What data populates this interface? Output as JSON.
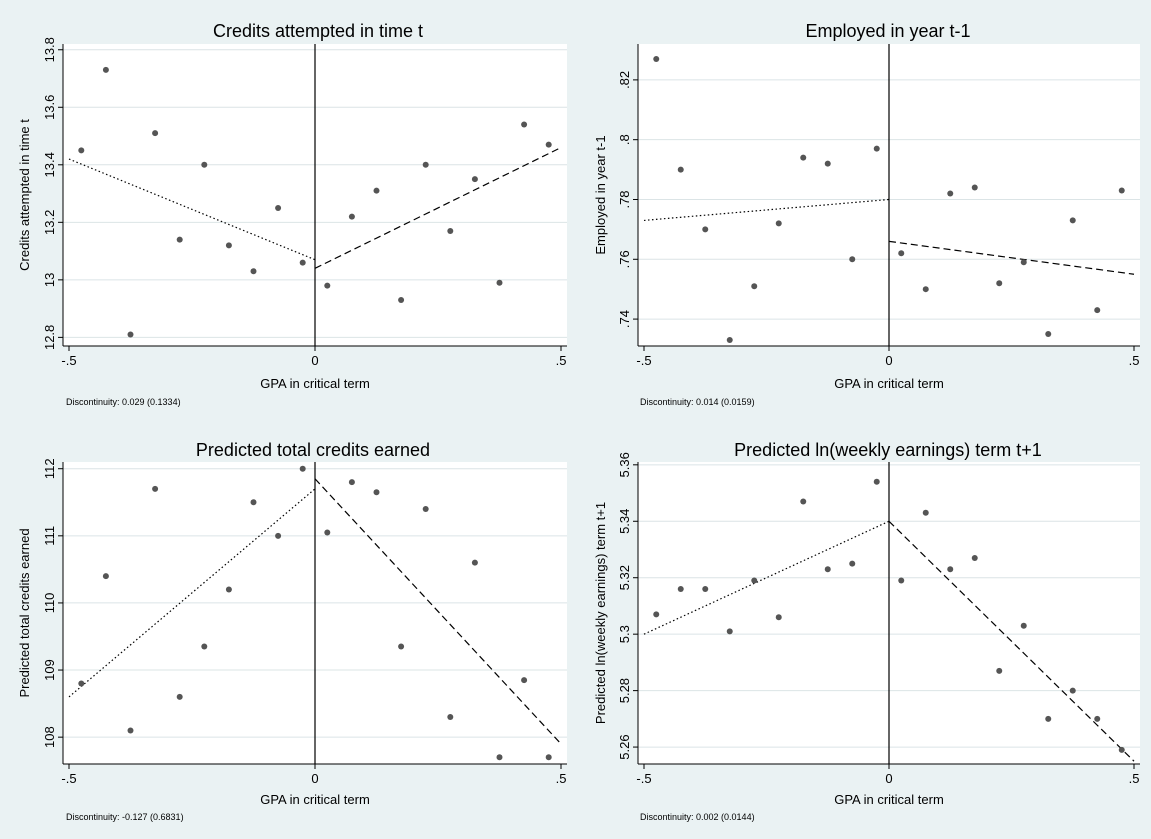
{
  "chart_data": [
    {
      "type": "scatter",
      "title": "Credits attempted in time t",
      "xlabel": "GPA in critical term",
      "ylabel": "Credits attempted in time t",
      "xlim": [
        -0.5,
        0.5
      ],
      "ylim": [
        12.77,
        13.82
      ],
      "x_ticks": [
        -0.5,
        0,
        0.5
      ],
      "x_tick_labels": [
        "-.5",
        "0",
        ".5"
      ],
      "y_ticks": [
        12.8,
        13,
        13.2,
        13.4,
        13.6,
        13.8
      ],
      "y_tick_labels": [
        "12.8",
        "13",
        "13.2",
        "13.4",
        "13.6",
        "13.8"
      ],
      "grid": true,
      "cutoff": 0,
      "note": "Discontinuity: 0.029 (0.1334)",
      "points": [
        [
          -0.475,
          13.45
        ],
        [
          -0.425,
          13.73
        ],
        [
          -0.375,
          12.81
        ],
        [
          -0.325,
          13.51
        ],
        [
          -0.275,
          13.14
        ],
        [
          -0.225,
          13.4
        ],
        [
          -0.175,
          13.12
        ],
        [
          -0.125,
          13.03
        ],
        [
          -0.075,
          13.25
        ],
        [
          -0.025,
          13.06
        ],
        [
          0.025,
          12.98
        ],
        [
          0.075,
          13.22
        ],
        [
          0.125,
          13.31
        ],
        [
          0.175,
          12.93
        ],
        [
          0.225,
          13.4
        ],
        [
          0.275,
          13.17
        ],
        [
          0.325,
          13.35
        ],
        [
          0.375,
          12.99
        ],
        [
          0.425,
          13.54
        ],
        [
          0.475,
          13.47
        ]
      ],
      "left_fit": [
        [
          -0.5,
          13.42
        ],
        [
          0,
          13.07
        ]
      ],
      "right_fit": [
        [
          0,
          13.04
        ],
        [
          0.5,
          13.46
        ]
      ]
    },
    {
      "type": "scatter",
      "title": "Employed in year t-1",
      "xlabel": "GPA in critical term",
      "ylabel": "Employed in year t-1",
      "xlim": [
        -0.5,
        0.5
      ],
      "ylim": [
        0.731,
        0.832
      ],
      "x_ticks": [
        -0.5,
        0,
        0.5
      ],
      "x_tick_labels": [
        "-.5",
        "0",
        ".5"
      ],
      "y_ticks": [
        0.74,
        0.76,
        0.78,
        0.8,
        0.82
      ],
      "y_tick_labels": [
        ".74",
        ".76",
        ".78",
        ".8",
        ".82"
      ],
      "grid": true,
      "cutoff": 0,
      "note": "Discontinuity: 0.014 (0.0159)",
      "points": [
        [
          -0.475,
          0.827
        ],
        [
          -0.425,
          0.79
        ],
        [
          -0.375,
          0.77
        ],
        [
          -0.325,
          0.733
        ],
        [
          -0.275,
          0.751
        ],
        [
          -0.225,
          0.772
        ],
        [
          -0.175,
          0.794
        ],
        [
          -0.125,
          0.792
        ],
        [
          -0.075,
          0.76
        ],
        [
          -0.025,
          0.797
        ],
        [
          0.025,
          0.762
        ],
        [
          0.075,
          0.75
        ],
        [
          0.125,
          0.782
        ],
        [
          0.175,
          0.784
        ],
        [
          0.225,
          0.752
        ],
        [
          0.275,
          0.759
        ],
        [
          0.325,
          0.735
        ],
        [
          0.375,
          0.773
        ],
        [
          0.425,
          0.743
        ],
        [
          0.475,
          0.783
        ]
      ],
      "left_fit": [
        [
          -0.5,
          0.773
        ],
        [
          0,
          0.78
        ]
      ],
      "right_fit": [
        [
          0,
          0.766
        ],
        [
          0.5,
          0.755
        ]
      ]
    },
    {
      "type": "scatter",
      "title": "Predicted total credits earned",
      "xlabel": "GPA in critical term",
      "ylabel": "Predicted total credits earned",
      "xlim": [
        -0.5,
        0.5
      ],
      "ylim": [
        107.6,
        112.1
      ],
      "x_ticks": [
        -0.5,
        0,
        0.5
      ],
      "x_tick_labels": [
        "-.5",
        "0",
        ".5"
      ],
      "y_ticks": [
        108,
        109,
        110,
        111,
        112
      ],
      "y_tick_labels": [
        "108",
        "109",
        "110",
        "111",
        "112"
      ],
      "grid": true,
      "cutoff": 0,
      "note": "Discontinuity: -0.127 (0.6831)",
      "points": [
        [
          -0.475,
          108.8
        ],
        [
          -0.425,
          110.4
        ],
        [
          -0.375,
          108.1
        ],
        [
          -0.325,
          111.7
        ],
        [
          -0.275,
          108.6
        ],
        [
          -0.225,
          109.35
        ],
        [
          -0.175,
          110.2
        ],
        [
          -0.125,
          111.5
        ],
        [
          -0.075,
          111.0
        ],
        [
          -0.025,
          112.0
        ],
        [
          0.025,
          111.05
        ],
        [
          0.075,
          111.8
        ],
        [
          0.125,
          111.65
        ],
        [
          0.175,
          109.35
        ],
        [
          0.225,
          111.4
        ],
        [
          0.275,
          108.3
        ],
        [
          0.325,
          110.6
        ],
        [
          0.375,
          107.7
        ],
        [
          0.425,
          108.85
        ],
        [
          0.475,
          107.7
        ]
      ],
      "left_fit": [
        [
          -0.5,
          108.6
        ],
        [
          0,
          111.7
        ]
      ],
      "right_fit": [
        [
          0,
          111.85
        ],
        [
          0.5,
          107.9
        ]
      ]
    },
    {
      "type": "scatter",
      "title": "Predicted ln(weekly earnings) term t+1",
      "xlabel": "GPA in critical term",
      "ylabel": "Predicted ln(weekly earnings) term t+1",
      "xlim": [
        -0.5,
        0.5
      ],
      "ylim": [
        5.254,
        5.361
      ],
      "x_ticks": [
        -0.5,
        0,
        0.5
      ],
      "x_tick_labels": [
        "-.5",
        "0",
        ".5"
      ],
      "y_ticks": [
        5.26,
        5.28,
        5.3,
        5.32,
        5.34,
        5.36
      ],
      "y_tick_labels": [
        "5.26",
        "5.28",
        "5.3",
        "5.32",
        "5.34",
        "5.36"
      ],
      "grid": true,
      "cutoff": 0,
      "note": "Discontinuity: 0.002 (0.0144)",
      "points": [
        [
          -0.475,
          5.307
        ],
        [
          -0.425,
          5.316
        ],
        [
          -0.375,
          5.316
        ],
        [
          -0.325,
          5.301
        ],
        [
          -0.275,
          5.319
        ],
        [
          -0.225,
          5.306
        ],
        [
          -0.175,
          5.347
        ],
        [
          -0.125,
          5.323
        ],
        [
          -0.075,
          5.325
        ],
        [
          -0.025,
          5.354
        ],
        [
          0.025,
          5.319
        ],
        [
          0.075,
          5.343
        ],
        [
          0.125,
          5.323
        ],
        [
          0.175,
          5.327
        ],
        [
          0.225,
          5.287
        ],
        [
          0.275,
          5.303
        ],
        [
          0.325,
          5.27
        ],
        [
          0.375,
          5.28
        ],
        [
          0.425,
          5.27
        ],
        [
          0.475,
          5.259
        ]
      ],
      "left_fit": [
        [
          -0.5,
          5.3
        ],
        [
          0,
          5.34
        ]
      ],
      "right_fit": [
        [
          0,
          5.34
        ],
        [
          0.5,
          5.255
        ]
      ]
    }
  ],
  "colors": {
    "background": "#eaf2f3",
    "plot_area": "#ffffff",
    "grid": "#dbe4e6",
    "points": "#555555",
    "lines": "#000000"
  }
}
